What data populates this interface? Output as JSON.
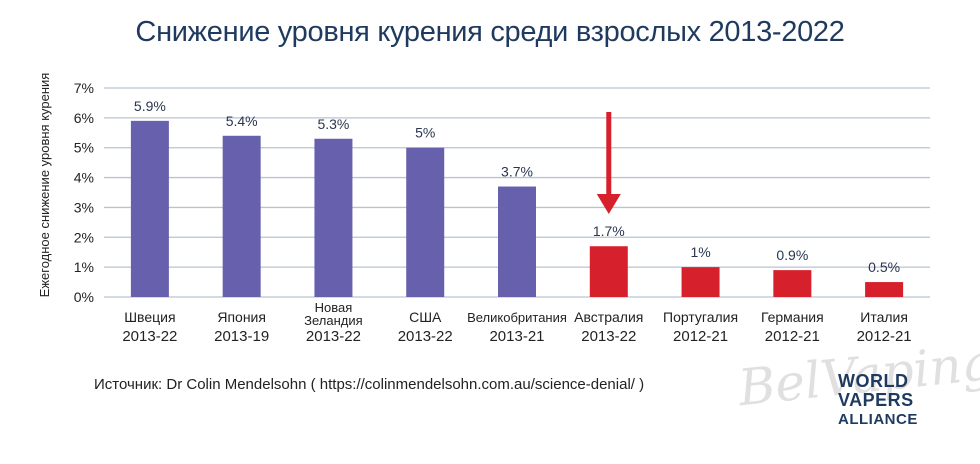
{
  "title": "Снижение уровня курения среди взрослых 2013-2022",
  "source": "Источник:  Dr Colin Mendelsohn ( https://colinmendelsohn.com.au/science-denial/ )",
  "watermark": "BelVaping",
  "logo": {
    "line1": "WORLD",
    "line2": "VAPERS",
    "line3": "ALLIANCE"
  },
  "colors": {
    "purple": "#6760ad",
    "red": "#d6202b",
    "grid": "#b9c3d4",
    "text": "#222222",
    "title": "#1f3a5f"
  },
  "chart_data": {
    "type": "bar",
    "title": "Снижение уровня курения среди взрослых 2013-2022",
    "ylabel": "Ежегодное снижение уровня курения",
    "ylim": [
      0,
      7
    ],
    "yticks": [
      0,
      1,
      2,
      3,
      4,
      5,
      6,
      7
    ],
    "ytick_labels": [
      "0%",
      "1%",
      "2%",
      "3%",
      "4%",
      "5%",
      "6%",
      "7%"
    ],
    "grid": true,
    "categories": [
      {
        "name": [
          "Швеция"
        ],
        "years": "2013-22",
        "value": 5.9,
        "label": "5.9%",
        "color": "purple"
      },
      {
        "name": [
          "Япония"
        ],
        "years": "2013-19",
        "value": 5.4,
        "label": "5.4%",
        "color": "purple"
      },
      {
        "name": [
          "Новая",
          "Зеландия"
        ],
        "years": "2013-22",
        "value": 5.3,
        "label": "5.3%",
        "color": "purple"
      },
      {
        "name": [
          "США"
        ],
        "years": "2013-22",
        "value": 5.0,
        "label": "5%",
        "color": "purple"
      },
      {
        "name": [
          "Великобритания"
        ],
        "years": "2013-21",
        "value": 3.7,
        "label": "3.7%",
        "color": "purple"
      },
      {
        "name": [
          "Австралия"
        ],
        "years": "2013-22",
        "value": 1.7,
        "label": "1.7%",
        "color": "red"
      },
      {
        "name": [
          "Португалия"
        ],
        "years": "2012-21",
        "value": 1.0,
        "label": "1%",
        "color": "red"
      },
      {
        "name": [
          "Германия"
        ],
        "years": "2012-21",
        "value": 0.9,
        "label": "0.9%",
        "color": "red"
      },
      {
        "name": [
          "Италия"
        ],
        "years": "2012-21",
        "value": 0.5,
        "label": "0.5%",
        "color": "red"
      }
    ],
    "annotation": {
      "type": "arrow",
      "target": "Австралия",
      "color": "red"
    }
  }
}
